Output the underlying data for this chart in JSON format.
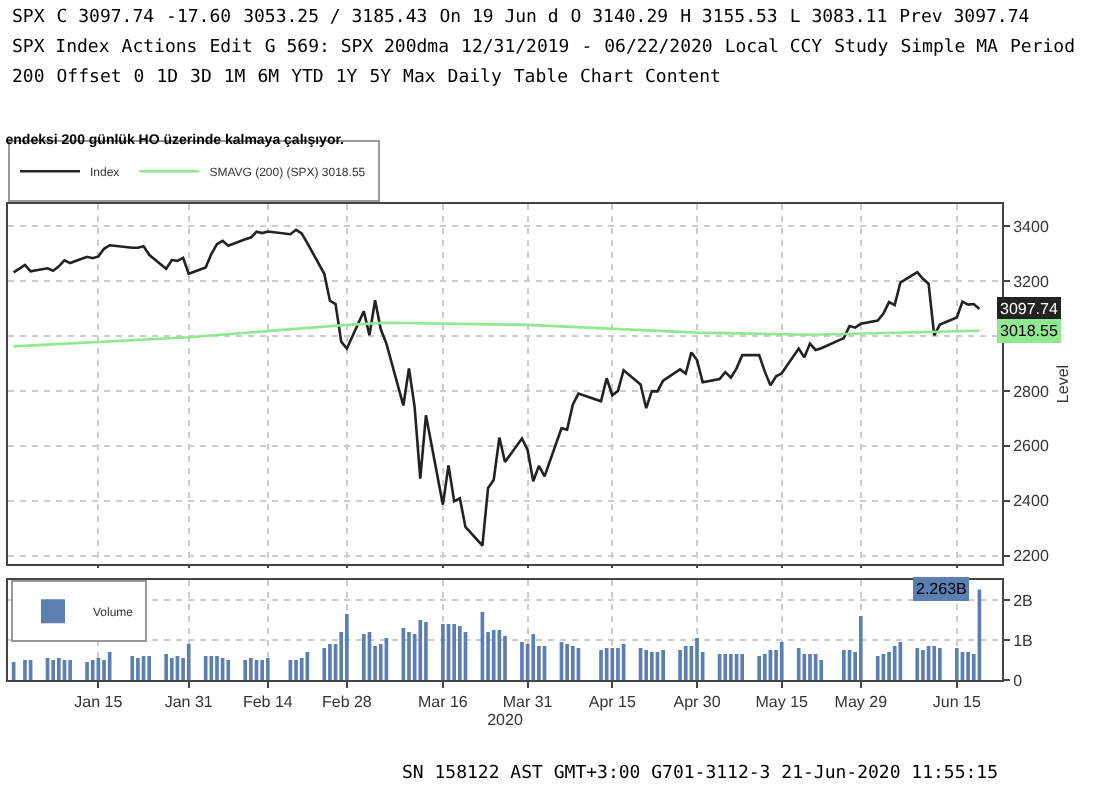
{
  "chart_data": [
    {
      "type": "other",
      "annotations": [
        "SPX",
        "C 3097.74",
        "-17.60",
        "3053.25 / 3185.43",
        "On 19 Jun d",
        "O 3140.29",
        "H 3155.53",
        "L 3083.11",
        "Prev 3097.74",
        "SPX Index",
        "Actions",
        "Edit",
        "G 569: SPX 200dma",
        "12/31/2019",
        "-",
        "06/22/2020",
        "Local CCY",
        "Study",
        "Simple MA",
        "Period",
        "200",
        "Offset",
        "0",
        "1D",
        "3D",
        "1M",
        "6M",
        "YTD",
        "1Y",
        "5Y",
        "Max",
        "Daily",
        "Table",
        "Chart Content"
      ]
    },
    {
      "type": "line",
      "title": "endeksi 200 günlük HO üzerinde kalmaya çalışıyor.",
      "ylabel": "Level",
      "legend": "top left",
      "grid": true,
      "tick_labels": "y",
      "xlim": [
        "2019-12-30",
        "2020-06-23"
      ],
      "xticks": [
        {
          "value": "2020-01-15",
          "label": null
        },
        {
          "value": "2020-01-31",
          "label": null
        },
        {
          "value": "2020-02-14",
          "label": null
        },
        {
          "value": "2020-02-28",
          "label": null
        },
        {
          "value": "2020-03-16",
          "label": null
        },
        {
          "value": "2020-03-31",
          "label": null
        },
        {
          "value": "2020-04-15",
          "label": null
        },
        {
          "value": "2020-04-30",
          "label": null
        },
        {
          "value": "2020-05-15",
          "label": null
        },
        {
          "value": "2020-05-29",
          "label": null
        },
        {
          "value": "2020-06-15",
          "label": null
        }
      ],
      "ylim": [
        2170,
        3480
      ],
      "yticks": [
        2200,
        2400,
        2600,
        2800,
        {
          "value": 3000,
          "label": null
        },
        3200,
        3400
      ],
      "annotations": [
        {
          "text": "3097.74",
          "x": "2020-06-19",
          "y": 3098
        },
        {
          "text": "3018.55",
          "x": "2020-06-19",
          "y": 3019
        }
      ],
      "x": [
        "2019-12-31",
        "2020-01-02",
        "2020-01-03",
        "2020-01-06",
        "2020-01-07",
        "2020-01-08",
        "2020-01-09",
        "2020-01-10",
        "2020-01-13",
        "2020-01-14",
        "2020-01-15",
        "2020-01-16",
        "2020-01-17",
        "2020-01-21",
        "2020-01-22",
        "2020-01-23",
        "2020-01-24",
        "2020-01-27",
        "2020-01-28",
        "2020-01-29",
        "2020-01-30",
        "2020-01-31",
        "2020-02-03",
        "2020-02-04",
        "2020-02-05",
        "2020-02-06",
        "2020-02-07",
        "2020-02-10",
        "2020-02-11",
        "2020-02-12",
        "2020-02-13",
        "2020-02-14",
        "2020-02-18",
        "2020-02-19",
        "2020-02-20",
        "2020-02-21",
        "2020-02-24",
        "2020-02-25",
        "2020-02-26",
        "2020-02-27",
        "2020-02-28",
        "2020-03-02",
        "2020-03-03",
        "2020-03-04",
        "2020-03-05",
        "2020-03-06",
        "2020-03-09",
        "2020-03-10",
        "2020-03-11",
        "2020-03-12",
        "2020-03-13",
        "2020-03-16",
        "2020-03-17",
        "2020-03-18",
        "2020-03-19",
        "2020-03-20",
        "2020-03-23",
        "2020-03-24",
        "2020-03-25",
        "2020-03-26",
        "2020-03-27",
        "2020-03-30",
        "2020-03-31",
        "2020-04-01",
        "2020-04-02",
        "2020-04-03",
        "2020-04-06",
        "2020-04-07",
        "2020-04-08",
        "2020-04-09",
        "2020-04-13",
        "2020-04-14",
        "2020-04-15",
        "2020-04-16",
        "2020-04-17",
        "2020-04-20",
        "2020-04-21",
        "2020-04-22",
        "2020-04-23",
        "2020-04-24",
        "2020-04-27",
        "2020-04-28",
        "2020-04-29",
        "2020-04-30",
        "2020-05-01",
        "2020-05-04",
        "2020-05-05",
        "2020-05-06",
        "2020-05-07",
        "2020-05-08",
        "2020-05-11",
        "2020-05-12",
        "2020-05-13",
        "2020-05-14",
        "2020-05-15",
        "2020-05-18",
        "2020-05-19",
        "2020-05-20",
        "2020-05-21",
        "2020-05-22",
        "2020-05-26",
        "2020-05-27",
        "2020-05-28",
        "2020-05-29",
        "2020-06-01",
        "2020-06-02",
        "2020-06-03",
        "2020-06-04",
        "2020-06-05",
        "2020-06-08",
        "2020-06-09",
        "2020-06-10",
        "2020-06-11",
        "2020-06-12",
        "2020-06-15",
        "2020-06-16",
        "2020-06-17",
        "2020-06-18",
        "2020-06-19"
      ],
      "series": [
        {
          "name": "Index",
          "color": "#222222",
          "values": [
            3231,
            3258,
            3235,
            3246,
            3237,
            3253,
            3275,
            3265,
            3288,
            3283,
            3289,
            3317,
            3330,
            3321,
            3321,
            3326,
            3295,
            3244,
            3276,
            3273,
            3284,
            3226,
            3249,
            3298,
            3334,
            3346,
            3328,
            3352,
            3358,
            3379,
            3374,
            3380,
            3370,
            3386,
            3373,
            3338,
            3226,
            3128,
            3116,
            2979,
            2954,
            3090,
            3003,
            3130,
            3024,
            2972,
            2747,
            2882,
            2741,
            2481,
            2711,
            2386,
            2529,
            2398,
            2409,
            2305,
            2237,
            2447,
            2476,
            2630,
            2541,
            2627,
            2585,
            2471,
            2527,
            2489,
            2664,
            2659,
            2750,
            2790,
            2762,
            2846,
            2784,
            2800,
            2875,
            2823,
            2737,
            2799,
            2798,
            2837,
            2878,
            2863,
            2940,
            2912,
            2831,
            2843,
            2868,
            2848,
            2882,
            2930,
            2930,
            2870,
            2820,
            2853,
            2864,
            2954,
            2922,
            2972,
            2949,
            2955,
            2992,
            3036,
            3030,
            3044,
            3056,
            3081,
            3123,
            3112,
            3194,
            3232,
            3208,
            3190,
            3002,
            3041,
            3067,
            3125,
            3114,
            3116,
            3098
          ]
        },
        {
          "name": "SMAVG (200) (SPX) 3018.55",
          "color": "#90e890",
          "x": [
            "2019-12-31",
            "2020-01-31",
            "2020-02-28",
            "2020-03-06",
            "2020-03-31",
            "2020-04-30",
            "2020-05-20",
            "2020-06-19"
          ],
          "values": [
            2962,
            2995,
            3040,
            3048,
            3040,
            3012,
            3004,
            3019
          ]
        }
      ]
    },
    {
      "type": "bar",
      "legend": "top left",
      "grid": true,
      "xlabel": "2020",
      "xlim": [
        "2019-12-30",
        "2020-06-23"
      ],
      "xticks": [
        {
          "value": "2020-01-15",
          "label": "Jan 15"
        },
        {
          "value": "2020-01-31",
          "label": "Jan 31"
        },
        {
          "value": "2020-02-14",
          "label": "Feb 14"
        },
        {
          "value": "2020-02-28",
          "label": "Feb 28"
        },
        {
          "value": "2020-03-16",
          "label": "Mar 16"
        },
        {
          "value": "2020-03-31",
          "label": "Mar 31"
        },
        {
          "value": "2020-04-15",
          "label": "Apr 15"
        },
        {
          "value": "2020-04-30",
          "label": "Apr 30"
        },
        {
          "value": "2020-05-15",
          "label": "May 15"
        },
        {
          "value": "2020-05-29",
          "label": "May 29"
        },
        {
          "value": "2020-06-15",
          "label": "Jun 15"
        }
      ],
      "ylim": [
        0,
        2.5
      ],
      "yticks": [
        {
          "value": 0,
          "label": "0"
        },
        {
          "value": 1,
          "label": "1B"
        },
        {
          "value": 2,
          "label": "2B"
        }
      ],
      "annotations": [
        {
          "text": "2.263B",
          "x": "2020-06-19",
          "y": 2.263
        },
        "SN 158122 AST GMT+3:00 G701-3112-3 21-Jun-2020 11:55:15"
      ],
      "x": [
        "2019-12-31",
        "2020-01-02",
        "2020-01-03",
        "2020-01-06",
        "2020-01-07",
        "2020-01-08",
        "2020-01-09",
        "2020-01-10",
        "2020-01-13",
        "2020-01-14",
        "2020-01-15",
        "2020-01-16",
        "2020-01-17",
        "2020-01-21",
        "2020-01-22",
        "2020-01-23",
        "2020-01-24",
        "2020-01-27",
        "2020-01-28",
        "2020-01-29",
        "2020-01-30",
        "2020-01-31",
        "2020-02-03",
        "2020-02-04",
        "2020-02-05",
        "2020-02-06",
        "2020-02-07",
        "2020-02-10",
        "2020-02-11",
        "2020-02-12",
        "2020-02-13",
        "2020-02-14",
        "2020-02-18",
        "2020-02-19",
        "2020-02-20",
        "2020-02-21",
        "2020-02-24",
        "2020-02-25",
        "2020-02-26",
        "2020-02-27",
        "2020-02-28",
        "2020-03-02",
        "2020-03-03",
        "2020-03-04",
        "2020-03-05",
        "2020-03-06",
        "2020-03-09",
        "2020-03-10",
        "2020-03-11",
        "2020-03-12",
        "2020-03-13",
        "2020-03-16",
        "2020-03-17",
        "2020-03-18",
        "2020-03-19",
        "2020-03-20",
        "2020-03-23",
        "2020-03-24",
        "2020-03-25",
        "2020-03-26",
        "2020-03-27",
        "2020-03-30",
        "2020-03-31",
        "2020-04-01",
        "2020-04-02",
        "2020-04-03",
        "2020-04-06",
        "2020-04-07",
        "2020-04-08",
        "2020-04-09",
        "2020-04-13",
        "2020-04-14",
        "2020-04-15",
        "2020-04-16",
        "2020-04-17",
        "2020-04-20",
        "2020-04-21",
        "2020-04-22",
        "2020-04-23",
        "2020-04-24",
        "2020-04-27",
        "2020-04-28",
        "2020-04-29",
        "2020-04-30",
        "2020-05-01",
        "2020-05-04",
        "2020-05-05",
        "2020-05-06",
        "2020-05-07",
        "2020-05-08",
        "2020-05-11",
        "2020-05-12",
        "2020-05-13",
        "2020-05-14",
        "2020-05-15",
        "2020-05-18",
        "2020-05-19",
        "2020-05-20",
        "2020-05-21",
        "2020-05-22",
        "2020-05-26",
        "2020-05-27",
        "2020-05-28",
        "2020-05-29",
        "2020-06-01",
        "2020-06-02",
        "2020-06-03",
        "2020-06-04",
        "2020-06-05",
        "2020-06-08",
        "2020-06-09",
        "2020-06-10",
        "2020-06-11",
        "2020-06-12",
        "2020-06-15",
        "2020-06-16",
        "2020-06-17",
        "2020-06-18",
        "2020-06-19"
      ],
      "series": [
        {
          "name": "Volume",
          "color": "#5b7fb2",
          "values": [
            0.45,
            0.5,
            0.5,
            0.55,
            0.5,
            0.55,
            0.5,
            0.5,
            0.45,
            0.5,
            0.55,
            0.5,
            0.7,
            0.6,
            0.55,
            0.6,
            0.6,
            0.65,
            0.55,
            0.6,
            0.55,
            0.9,
            0.6,
            0.6,
            0.6,
            0.55,
            0.5,
            0.5,
            0.55,
            0.5,
            0.5,
            0.55,
            0.5,
            0.5,
            0.55,
            0.7,
            0.8,
            0.9,
            0.9,
            1.2,
            1.65,
            1.15,
            1.2,
            0.85,
            0.9,
            1.05,
            1.3,
            1.2,
            1.15,
            1.5,
            1.45,
            1.4,
            1.4,
            1.4,
            1.35,
            1.2,
            1.7,
            1.2,
            1.25,
            1.25,
            1.1,
            0.95,
            0.9,
            1.15,
            0.85,
            0.85,
            0.95,
            0.9,
            0.85,
            0.8,
            0.75,
            0.8,
            0.8,
            0.8,
            0.9,
            0.8,
            0.75,
            0.7,
            0.7,
            0.75,
            0.75,
            0.85,
            0.85,
            1.05,
            0.7,
            0.65,
            0.65,
            0.65,
            0.65,
            0.65,
            0.6,
            0.65,
            0.75,
            0.75,
            0.95,
            0.8,
            0.65,
            0.65,
            0.65,
            0.5,
            0.75,
            0.75,
            0.7,
            1.6,
            0.6,
            0.65,
            0.7,
            0.85,
            0.95,
            0.8,
            0.75,
            0.85,
            0.85,
            0.8,
            0.8,
            0.7,
            0.7,
            0.65,
            2.263
          ]
        }
      ]
    }
  ]
}
